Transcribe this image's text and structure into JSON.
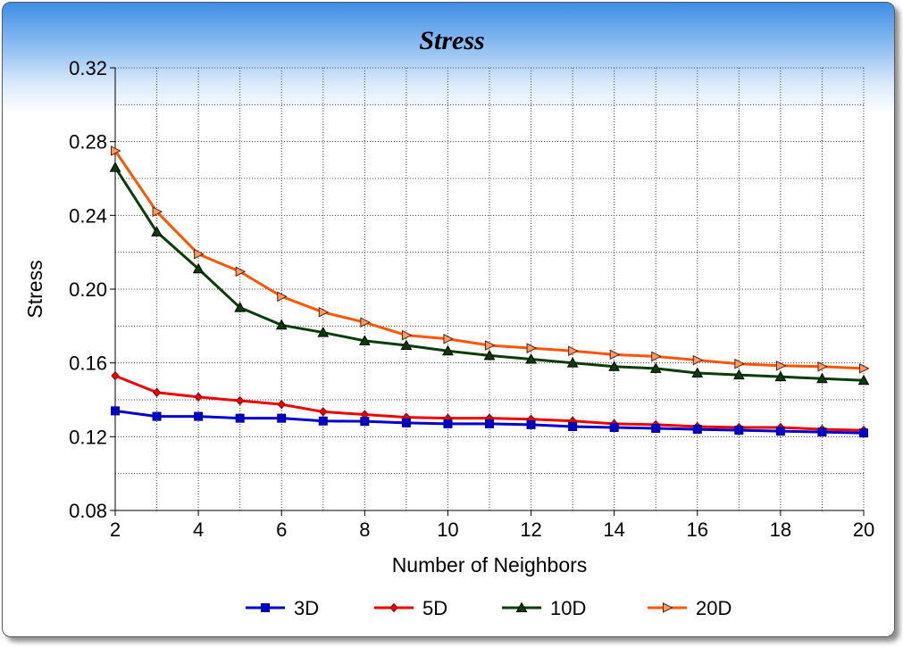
{
  "chart_data": {
    "type": "line",
    "title": "Stress",
    "xlabel": "Number of Neighbors",
    "ylabel": "Stress",
    "x": [
      2,
      3,
      4,
      5,
      6,
      7,
      8,
      9,
      10,
      11,
      12,
      13,
      14,
      15,
      16,
      17,
      18,
      19,
      20
    ],
    "xlim": [
      2,
      20
    ],
    "xticks": [
      2,
      4,
      6,
      8,
      10,
      12,
      14,
      16,
      18,
      20
    ],
    "xtick_labels": [
      "2",
      "4",
      "6",
      "8",
      "10",
      "12",
      "14",
      "16",
      "18",
      "20"
    ],
    "ylim": [
      0.08,
      0.32
    ],
    "yticks": [
      0.08,
      0.12,
      0.16,
      0.2,
      0.24,
      0.28,
      0.32
    ],
    "ytick_labels": [
      "0.08",
      "0.12",
      "0.16",
      "0.20",
      "0.24",
      "0.28",
      "0.32"
    ],
    "grid": true,
    "legend_position": "bottom",
    "series": [
      {
        "name": "3D",
        "color": "#0000cc",
        "marker": "square",
        "values": [
          0.134,
          0.131,
          0.131,
          0.13,
          0.13,
          0.1285,
          0.1283,
          0.1275,
          0.127,
          0.127,
          0.1265,
          0.1255,
          0.125,
          0.1245,
          0.124,
          0.1235,
          0.123,
          0.1225,
          0.122
        ]
      },
      {
        "name": "5D",
        "color": "#ee0000",
        "marker": "diamond",
        "values": [
          0.153,
          0.144,
          0.1415,
          0.1395,
          0.1375,
          0.1335,
          0.132,
          0.1305,
          0.13,
          0.13,
          0.1295,
          0.1285,
          0.127,
          0.1265,
          0.1255,
          0.125,
          0.125,
          0.124,
          0.1235
        ]
      },
      {
        "name": "10D",
        "color": "#0a3d0a",
        "marker": "triangle-up",
        "values": [
          0.266,
          0.231,
          0.211,
          0.19,
          0.1805,
          0.1765,
          0.172,
          0.1695,
          0.1665,
          0.164,
          0.162,
          0.16,
          0.158,
          0.157,
          0.1545,
          0.1535,
          0.1525,
          0.1515,
          0.1505
        ]
      },
      {
        "name": "20D",
        "color": "#ff5500",
        "marker": "triangle-right",
        "values": [
          0.275,
          0.242,
          0.219,
          0.2095,
          0.196,
          0.1875,
          0.182,
          0.175,
          0.173,
          0.1695,
          0.168,
          0.1665,
          0.1645,
          0.1635,
          0.1615,
          0.1595,
          0.1585,
          0.158,
          0.157
        ]
      }
    ]
  }
}
